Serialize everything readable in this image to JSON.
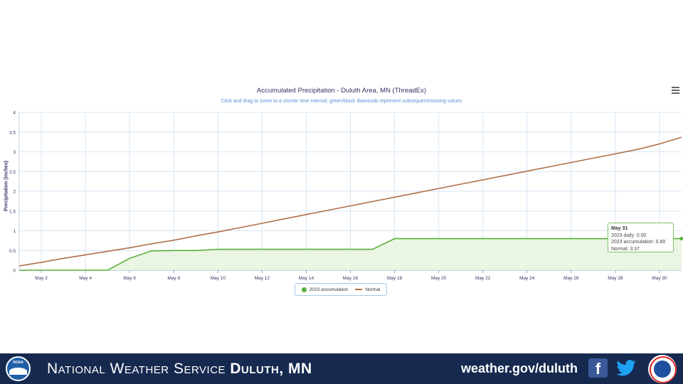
{
  "chart": {
    "title": "Accumulated Precipitation - Duluth Area, MN (ThreadEx)",
    "subtitle": "Click and drag to zoom to a shorter time interval, green/black diamonds represent subsequent/missing values"
  },
  "chart_data": {
    "type": "line",
    "title": "Accumulated Precipitation - Duluth Area, MN (ThreadEx)",
    "subtitle": "Click and drag to zoom to a shorter time interval, green/black diamonds represent subsequent/missing values",
    "xlabel": "",
    "ylabel": "Precipitation (inches)",
    "x": [
      "May 1",
      "May 2",
      "May 3",
      "May 4",
      "May 5",
      "May 6",
      "May 7",
      "May 8",
      "May 9",
      "May 10",
      "May 11",
      "May 12",
      "May 13",
      "May 14",
      "May 15",
      "May 16",
      "May 17",
      "May 18",
      "May 19",
      "May 20",
      "May 21",
      "May 22",
      "May 23",
      "May 24",
      "May 25",
      "May 26",
      "May 27",
      "May 28",
      "May 29",
      "May 30",
      "May 31"
    ],
    "x_tick_labels": [
      "May 2",
      "May 4",
      "May 6",
      "May 8",
      "May 10",
      "May 12",
      "May 14",
      "May 16",
      "May 18",
      "May 20",
      "May 22",
      "May 24",
      "May 26",
      "May 28",
      "May 30"
    ],
    "y_tick_labels": [
      "0",
      "0.5",
      "1",
      "1.5",
      "2",
      "2.5",
      "3",
      "3.5",
      "4"
    ],
    "ylim": [
      0,
      4
    ],
    "grid": true,
    "legend_position": "bottom-center",
    "series": [
      {
        "name": "2023 accumulation",
        "color": "#58b03a",
        "fill": "#e8f4e0",
        "values": [
          0,
          0,
          0,
          0,
          0,
          0.3,
          0.49,
          0.5,
          0.5,
          0.53,
          0.53,
          0.53,
          0.53,
          0.53,
          0.53,
          0.53,
          0.53,
          0.8,
          0.8,
          0.8,
          0.8,
          0.8,
          0.8,
          0.8,
          0.8,
          0.8,
          0.8,
          0.8,
          0.8,
          0.8,
          0.8
        ]
      },
      {
        "name": "Normal",
        "color": "#b0704a",
        "values": [
          0.11,
          0.2,
          0.3,
          0.39,
          0.48,
          0.57,
          0.67,
          0.76,
          0.87,
          0.97,
          1.08,
          1.19,
          1.3,
          1.41,
          1.52,
          1.63,
          1.74,
          1.85,
          1.96,
          2.07,
          2.18,
          2.29,
          2.4,
          2.51,
          2.62,
          2.73,
          2.84,
          2.95,
          3.06,
          3.2,
          3.37
        ]
      }
    ],
    "tooltip": {
      "date": "May 31",
      "daily": "2023 daily: 0.00",
      "accumulation": "2023 accumulation: 0.80",
      "normal": "Normal: 3.37"
    }
  },
  "legend": {
    "items": [
      {
        "label": "2023 accumulation"
      },
      {
        "label": "Normal"
      }
    ]
  },
  "footer": {
    "org_prefix": "National Weather Service",
    "org_office": "Duluth, MN",
    "url": "weather.gov/duluth",
    "facebook_glyph": "f",
    "noaa_label": "NOAA"
  }
}
